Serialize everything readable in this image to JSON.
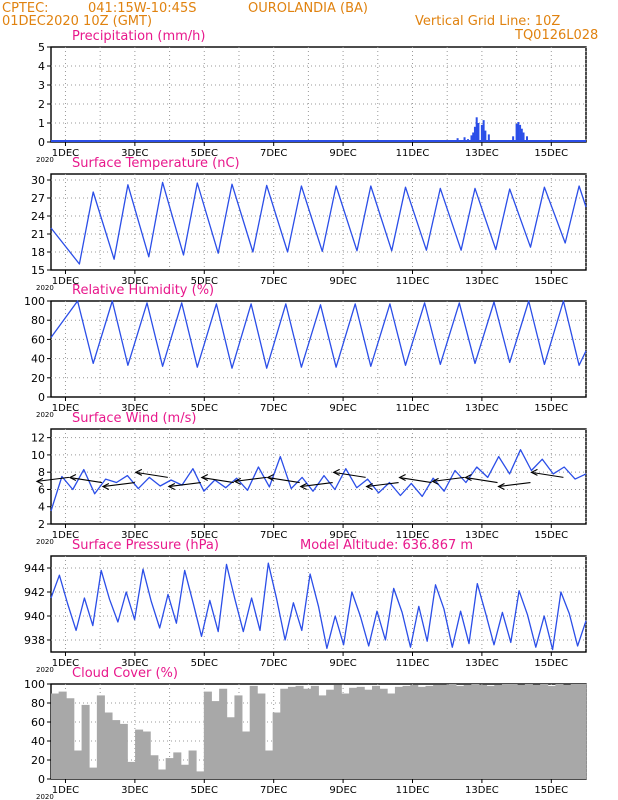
{
  "header": {
    "source": "CPTEC:",
    "coords": "041:15W-10:45S",
    "location": "OUROLANDIA (BA)",
    "init_time": "01DEC2020 10Z (GMT)",
    "grid_note": "Vertical Grid Line: 10Z",
    "code": "TQ0126L028"
  },
  "colors": {
    "header": "#e0820f",
    "title": "#e8188c",
    "series": "#2b4ee8",
    "cloud": "#a8a8a8",
    "wind_arrow": "#000000"
  },
  "chart_data": [
    {
      "id": "precip",
      "type": "bar",
      "title": "Precipitation (mm/h)",
      "x": [
        12.3,
        12.4,
        12.5,
        12.6,
        12.7,
        12.75,
        12.8,
        12.85,
        12.9,
        13.0,
        13.05,
        13.1,
        13.2,
        13.3,
        13.35,
        13.4,
        13.45,
        13.5,
        13.55,
        13.6,
        13.9,
        14.0,
        14.05,
        14.1,
        14.15,
        14.2,
        14.3,
        14.4
      ],
      "values": [
        0.2,
        0.1,
        0.25,
        0.15,
        0.35,
        0.5,
        0.8,
        1.3,
        1.0,
        0.9,
        1.15,
        0.6,
        0.4,
        0.1,
        0.05,
        0.1,
        0.05,
        0.08,
        0.1,
        0.05,
        0.3,
        0.95,
        1.05,
        0.9,
        0.7,
        0.5,
        0.3,
        0.1
      ],
      "ylim": [
        0,
        5
      ],
      "yticks": [
        0,
        1,
        2,
        3,
        4,
        5
      ]
    },
    {
      "id": "temp",
      "type": "line",
      "title": "Surface Temperature (nC)",
      "min": [
        16.0,
        16.8,
        17.2,
        17.5,
        17.8,
        18.0,
        18.0,
        18.1,
        18.2,
        18.2,
        18.3,
        18.3,
        18.4,
        18.8,
        19.5
      ],
      "max": [
        28.0,
        29.2,
        29.6,
        29.5,
        29.3,
        29.1,
        29.0,
        29.0,
        29.0,
        28.8,
        28.6,
        28.6,
        28.5,
        28.8,
        29.0
      ],
      "ylim": [
        15,
        31
      ],
      "yticks": [
        15,
        18,
        21,
        24,
        27,
        30
      ]
    },
    {
      "id": "rh",
      "type": "line",
      "title": "Relative Humidity (%)",
      "min": [
        35,
        33,
        32,
        31,
        30,
        30,
        31,
        31,
        32,
        33,
        34,
        35,
        36,
        34,
        33
      ],
      "max": [
        100,
        100,
        98,
        98,
        97,
        97,
        97,
        96,
        97,
        97,
        98,
        98,
        99,
        100,
        100
      ],
      "ylim": [
        0,
        100
      ],
      "yticks": [
        0,
        20,
        40,
        60,
        80,
        100
      ]
    },
    {
      "id": "wind",
      "type": "line",
      "title": "Surface Wind (m/s)",
      "values": [
        3.5,
        7.5,
        6.0,
        8.3,
        5.5,
        7.2,
        6.8,
        7.6,
        6.1,
        7.4,
        6.4,
        7.1,
        6.5,
        8.4,
        5.8,
        7.1,
        6.2,
        7.3,
        5.9,
        8.6,
        6.3,
        9.8,
        6.1,
        7.4,
        5.8,
        7.6,
        6.0,
        8.4,
        6.2,
        7.2,
        5.6,
        6.8,
        5.3,
        6.7,
        5.2,
        7.3,
        5.8,
        8.2,
        6.8,
        8.6,
        7.4,
        9.8,
        7.8,
        10.6,
        8.2,
        9.5,
        7.8,
        8.6,
        7.2,
        7.8
      ],
      "ylim": [
        2,
        13
      ],
      "yticks": [
        2,
        4,
        6,
        8,
        10,
        12
      ]
    },
    {
      "id": "pressure",
      "type": "line",
      "title": "Surface Pressure (hPa)",
      "annotation": "Model Altitude: 636.867 m",
      "values": [
        941.5,
        943.4,
        941.0,
        938.8,
        941.5,
        939.2,
        943.8,
        941.4,
        939.5,
        942.0,
        939.7,
        943.9,
        941.2,
        939.0,
        941.8,
        939.4,
        943.8,
        941.1,
        938.3,
        941.3,
        938.7,
        944.3,
        941.4,
        938.7,
        941.5,
        938.8,
        944.4,
        941.4,
        938.0,
        941.1,
        938.8,
        943.5,
        940.8,
        937.3,
        940.0,
        937.6,
        942.0,
        940.0,
        937.5,
        940.4,
        938.0,
        942.3,
        940.3,
        937.4,
        940.8,
        937.9,
        942.6,
        940.6,
        937.4,
        940.4,
        937.7,
        942.7,
        940.2,
        937.6,
        940.3,
        937.8,
        942.1,
        940.1,
        937.4,
        940.0,
        937.2,
        942.0,
        940.2,
        937.5,
        939.6
      ],
      "ylim": [
        937,
        945
      ],
      "yticks": [
        938,
        940,
        942,
        944
      ]
    },
    {
      "id": "cloud",
      "type": "bar",
      "title": "Cloud Cover (%)",
      "values": [
        90,
        92,
        85,
        30,
        78,
        12,
        88,
        70,
        62,
        58,
        18,
        52,
        50,
        25,
        10,
        22,
        28,
        15,
        30,
        8,
        92,
        82,
        95,
        65,
        88,
        50,
        98,
        90,
        30,
        70,
        95,
        97,
        98,
        95,
        98,
        88,
        94,
        99,
        90,
        96,
        97,
        94,
        98,
        95,
        90,
        97,
        98,
        99,
        97,
        98,
        99,
        99,
        100,
        98,
        99,
        100,
        99,
        98,
        99,
        100,
        100,
        99,
        100,
        99,
        100,
        98,
        100,
        99,
        100,
        100
      ],
      "ylim": [
        0,
        100
      ],
      "yticks": [
        0,
        20,
        40,
        60,
        80,
        100
      ]
    }
  ],
  "x_axis": {
    "range_days": [
      1,
      16
    ],
    "tick_labels": [
      "1DEC",
      "3DEC",
      "5DEC",
      "7DEC",
      "9DEC",
      "11DEC",
      "13DEC",
      "15DEC"
    ],
    "tick_days": [
      1,
      3,
      5,
      7,
      9,
      11,
      13,
      15
    ],
    "year_label": "2020"
  }
}
